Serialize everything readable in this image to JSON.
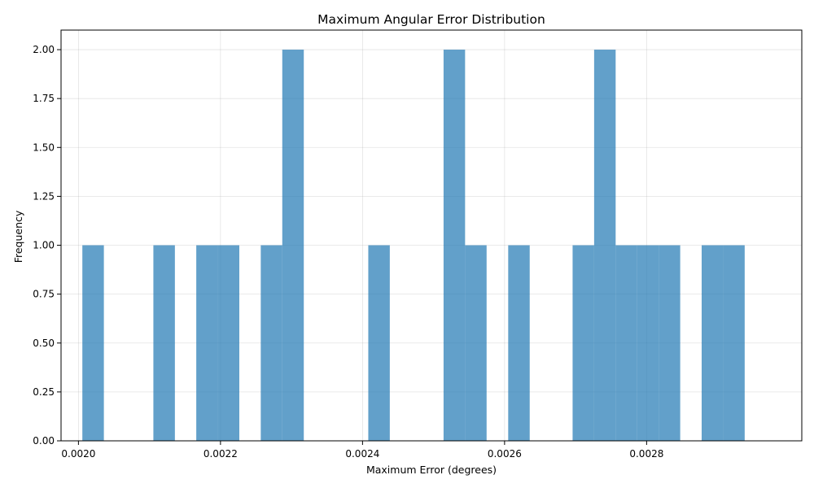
{
  "chart_data": {
    "type": "bar",
    "title": "Maximum Angular Error Distribution",
    "xlabel": "Maximum Error (degrees)",
    "ylabel": "Frequency",
    "bin_width": 3.03e-05,
    "xlim": [
      0.0019755,
      0.0030185
    ],
    "ylim": [
      0,
      2.1
    ],
    "xticks": [
      {
        "value": 0.002,
        "label": "0.0020"
      },
      {
        "value": 0.0022,
        "label": "0.0022"
      },
      {
        "value": 0.0024,
        "label": "0.0024"
      },
      {
        "value": 0.0026,
        "label": "0.0026"
      },
      {
        "value": 0.0028,
        "label": "0.0028"
      }
    ],
    "yticks": [
      {
        "value": 0.0,
        "label": "0.00"
      },
      {
        "value": 0.25,
        "label": "0.25"
      },
      {
        "value": 0.5,
        "label": "0.50"
      },
      {
        "value": 0.75,
        "label": "0.75"
      },
      {
        "value": 1.0,
        "label": "1.00"
      },
      {
        "value": 1.25,
        "label": "1.25"
      },
      {
        "value": 1.5,
        "label": "1.50"
      },
      {
        "value": 1.75,
        "label": "1.75"
      },
      {
        "value": 2.0,
        "label": "2.00"
      }
    ],
    "grid": true,
    "bar_color": "#1f77b4",
    "bins": [
      {
        "left": 0.0020055,
        "count": 1
      },
      {
        "left": 0.0020964,
        "count": 0
      },
      {
        "left": 0.0021055,
        "count": 1
      },
      {
        "left": 0.0021659,
        "count": 1
      },
      {
        "left": 0.0021962,
        "count": 1
      },
      {
        "left": 0.0022567,
        "count": 1
      },
      {
        "left": 0.002287,
        "count": 2
      },
      {
        "left": 0.0024081,
        "count": 1
      },
      {
        "left": 0.0024989,
        "count": 0
      },
      {
        "left": 0.0025141,
        "count": 2
      },
      {
        "left": 0.0025444,
        "count": 1
      },
      {
        "left": 0.0026051,
        "count": 1
      },
      {
        "left": 0.0026958,
        "count": 1
      },
      {
        "left": 0.0027261,
        "count": 2
      },
      {
        "left": 0.0027564,
        "count": 1
      },
      {
        "left": 0.0027867,
        "count": 1
      },
      {
        "left": 0.002817,
        "count": 1
      },
      {
        "left": 0.0028775,
        "count": 1
      },
      {
        "left": 0.0029078,
        "count": 1
      }
    ]
  }
}
